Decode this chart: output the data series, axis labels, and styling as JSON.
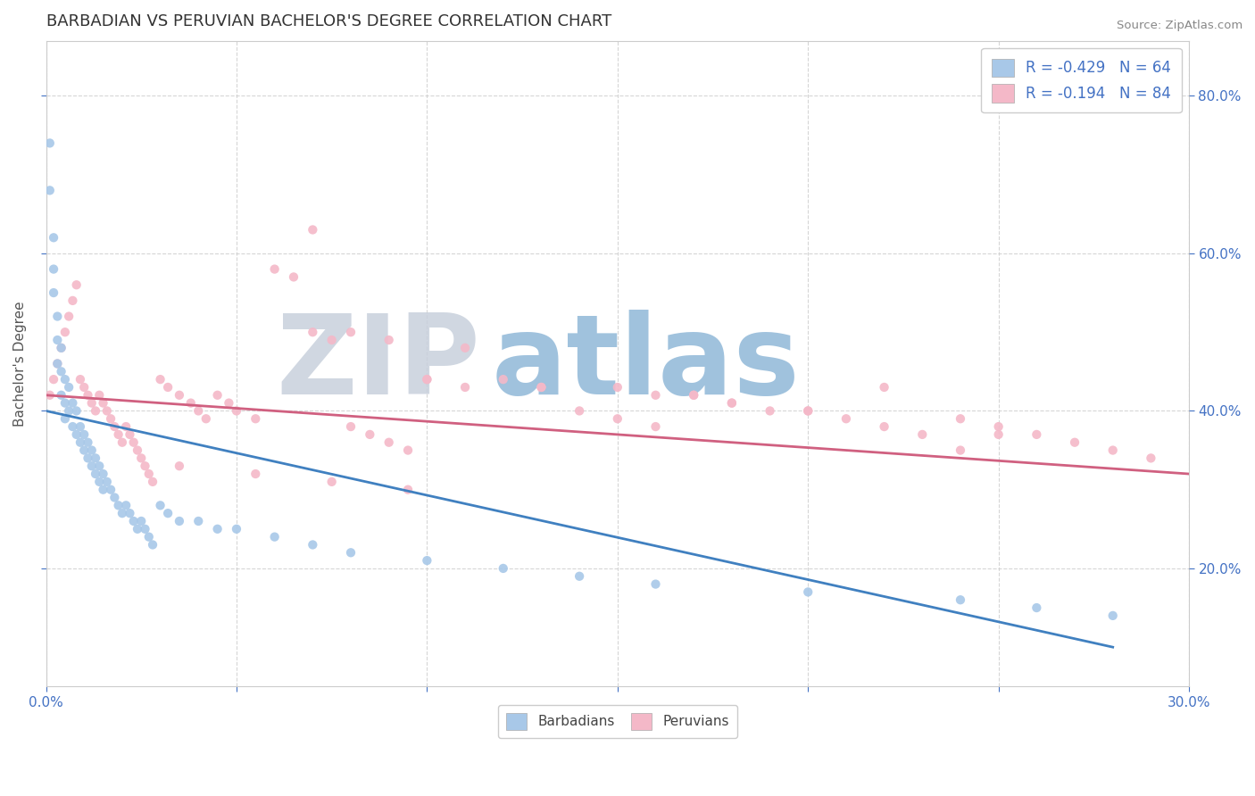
{
  "title": "BARBADIAN VS PERUVIAN BACHELOR'S DEGREE CORRELATION CHART",
  "source": "Source: ZipAtlas.com",
  "ylabel": "Bachelor's Degree",
  "ylabel_right_ticks": [
    "20.0%",
    "40.0%",
    "60.0%",
    "80.0%"
  ],
  "ylabel_right_vals": [
    0.2,
    0.4,
    0.6,
    0.8
  ],
  "xmin": 0.0,
  "xmax": 0.3,
  "ymin": 0.05,
  "ymax": 0.87,
  "legend1_label": "R = -0.429   N = 64",
  "legend2_label": "R = -0.194   N = 84",
  "blue_color": "#a8c8e8",
  "pink_color": "#f4b8c8",
  "blue_line_color": "#4080c0",
  "pink_line_color": "#d06080",
  "watermark_zip": "ZIP",
  "watermark_atlas": "atlas",
  "watermark_color_zip": "#c8d0dc",
  "watermark_color_atlas": "#90b8d8",
  "bg_color": "#ffffff",
  "grid_color": "#cccccc",
  "tick_color": "#4472c4",
  "barbadian_x": [
    0.001,
    0.001,
    0.002,
    0.002,
    0.002,
    0.003,
    0.003,
    0.003,
    0.004,
    0.004,
    0.004,
    0.005,
    0.005,
    0.005,
    0.006,
    0.006,
    0.007,
    0.007,
    0.008,
    0.008,
    0.009,
    0.009,
    0.01,
    0.01,
    0.011,
    0.011,
    0.012,
    0.012,
    0.013,
    0.013,
    0.014,
    0.014,
    0.015,
    0.015,
    0.016,
    0.017,
    0.018,
    0.019,
    0.02,
    0.021,
    0.022,
    0.023,
    0.024,
    0.025,
    0.026,
    0.027,
    0.028,
    0.03,
    0.032,
    0.035,
    0.04,
    0.045,
    0.05,
    0.06,
    0.07,
    0.08,
    0.1,
    0.12,
    0.14,
    0.16,
    0.2,
    0.24,
    0.26,
    0.28
  ],
  "barbadian_y": [
    0.74,
    0.68,
    0.62,
    0.58,
    0.55,
    0.52,
    0.49,
    0.46,
    0.48,
    0.45,
    0.42,
    0.44,
    0.41,
    0.39,
    0.43,
    0.4,
    0.41,
    0.38,
    0.4,
    0.37,
    0.38,
    0.36,
    0.37,
    0.35,
    0.36,
    0.34,
    0.35,
    0.33,
    0.34,
    0.32,
    0.33,
    0.31,
    0.32,
    0.3,
    0.31,
    0.3,
    0.29,
    0.28,
    0.27,
    0.28,
    0.27,
    0.26,
    0.25,
    0.26,
    0.25,
    0.24,
    0.23,
    0.28,
    0.27,
    0.26,
    0.26,
    0.25,
    0.25,
    0.24,
    0.23,
    0.22,
    0.21,
    0.2,
    0.19,
    0.18,
    0.17,
    0.16,
    0.15,
    0.14
  ],
  "peruvian_x": [
    0.001,
    0.002,
    0.003,
    0.004,
    0.005,
    0.006,
    0.007,
    0.008,
    0.009,
    0.01,
    0.011,
    0.012,
    0.013,
    0.014,
    0.015,
    0.016,
    0.017,
    0.018,
    0.019,
    0.02,
    0.021,
    0.022,
    0.023,
    0.024,
    0.025,
    0.026,
    0.027,
    0.028,
    0.03,
    0.032,
    0.035,
    0.038,
    0.04,
    0.042,
    0.045,
    0.048,
    0.05,
    0.055,
    0.06,
    0.065,
    0.07,
    0.075,
    0.08,
    0.085,
    0.09,
    0.095,
    0.1,
    0.11,
    0.12,
    0.13,
    0.14,
    0.15,
    0.16,
    0.17,
    0.18,
    0.19,
    0.2,
    0.21,
    0.22,
    0.23,
    0.24,
    0.25,
    0.26,
    0.27,
    0.28,
    0.29,
    0.08,
    0.1,
    0.13,
    0.15,
    0.17,
    0.2,
    0.22,
    0.25,
    0.07,
    0.09,
    0.11,
    0.16,
    0.18,
    0.24,
    0.035,
    0.055,
    0.075,
    0.095
  ],
  "peruvian_y": [
    0.42,
    0.44,
    0.46,
    0.48,
    0.5,
    0.52,
    0.54,
    0.56,
    0.44,
    0.43,
    0.42,
    0.41,
    0.4,
    0.42,
    0.41,
    0.4,
    0.39,
    0.38,
    0.37,
    0.36,
    0.38,
    0.37,
    0.36,
    0.35,
    0.34,
    0.33,
    0.32,
    0.31,
    0.44,
    0.43,
    0.42,
    0.41,
    0.4,
    0.39,
    0.42,
    0.41,
    0.4,
    0.39,
    0.58,
    0.57,
    0.5,
    0.49,
    0.38,
    0.37,
    0.36,
    0.35,
    0.44,
    0.43,
    0.44,
    0.43,
    0.4,
    0.39,
    0.38,
    0.42,
    0.41,
    0.4,
    0.4,
    0.39,
    0.38,
    0.37,
    0.39,
    0.38,
    0.37,
    0.36,
    0.35,
    0.34,
    0.5,
    0.44,
    0.43,
    0.43,
    0.42,
    0.4,
    0.43,
    0.37,
    0.63,
    0.49,
    0.48,
    0.42,
    0.41,
    0.35,
    0.33,
    0.32,
    0.31,
    0.3
  ]
}
